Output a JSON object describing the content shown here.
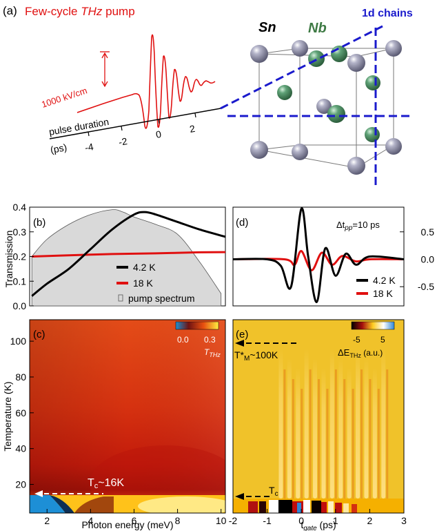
{
  "panel_a": {
    "label": "(a)",
    "title": "Few-cycle THz pump",
    "title_plain": "Few-cycle ",
    "title_italic": "THz",
    "title_end": " pump",
    "field_label": "1000 kV/cm",
    "axis_label": "pulse duration",
    "unit_label": "(ps)",
    "ticks": [
      "-4",
      "-2",
      "0",
      "2"
    ],
    "crystal": {
      "sn_label": "Sn",
      "nb_label": "Nb",
      "chains_label": "1d chains",
      "colors": {
        "sn": "#8e8ea8",
        "nb": "#4f9366",
        "chains": "#1a1acc"
      }
    }
  },
  "panel_b": {
    "label": "(b)",
    "ylabel": "Transmission",
    "yticks": [
      "0.0",
      "0.1",
      "0.2",
      "0.3",
      "0.4"
    ],
    "legend": [
      "4.2 K",
      "18 K",
      "pump spectrum"
    ]
  },
  "panel_c": {
    "label": "(c)",
    "ylabel": "Temperature (K)",
    "xlabel": "Photon energy (meV)",
    "xticks": [
      "2",
      "4",
      "6",
      "8",
      "10"
    ],
    "yticks": [
      "20",
      "40",
      "60",
      "80",
      "100"
    ],
    "colorbar_ticks": [
      "0.0",
      "0.3"
    ],
    "colorbar_label": "T",
    "colorbar_sub": "THz",
    "tc_annotation": "T",
    "tc_sub": "c",
    "tc_value": "~16K"
  },
  "panel_d": {
    "label": "(d)",
    "annotation_prefix": "Δt",
    "annotation_sub": "pp",
    "annotation_value": "=10 ps",
    "yticks": [
      "0.5",
      "0.0",
      "-0.5"
    ],
    "legend": [
      "4.2 K",
      "18 K"
    ]
  },
  "panel_e": {
    "label": "(e)",
    "xlabel_main": "t",
    "xlabel_sub": "gate",
    "xlabel_unit": " (ps)",
    "xticks": [
      "-2",
      "-1",
      "0",
      "1",
      "2",
      "3"
    ],
    "colorbar_ticks": [
      "-5",
      "5"
    ],
    "colorbar_label": "ΔE",
    "colorbar_sub": "THz",
    "colorbar_unit": " (a.u.)",
    "tm_annotation": "T*",
    "tm_sub": "M",
    "tm_value": "~100K",
    "tc_annotation": "T",
    "tc_sub": "c"
  },
  "colors": {
    "black_curve": "#000000",
    "red_curve": "#e01010",
    "pump_fill": "#d9d9d9"
  },
  "chart_data": [
    {
      "type": "line",
      "panel": "(b)",
      "xlabel": "",
      "ylabel": "Transmission",
      "xlim": [
        1.2,
        10.2
      ],
      "ylim": [
        0,
        0.4
      ],
      "series": [
        {
          "name": "4.2 K",
          "x": [
            1.3,
            2.0,
            3.0,
            4.0,
            5.0,
            6.0,
            6.5,
            7.0,
            8.0,
            9.0,
            10.2
          ],
          "values": [
            0.04,
            0.09,
            0.15,
            0.23,
            0.31,
            0.37,
            0.38,
            0.37,
            0.34,
            0.31,
            0.28
          ]
        },
        {
          "name": "18 K",
          "x": [
            1.3,
            3.0,
            5.0,
            7.0,
            9.0,
            10.2
          ],
          "values": [
            0.2,
            0.205,
            0.21,
            0.213,
            0.217,
            0.218
          ]
        },
        {
          "name": "pump spectrum",
          "x": [
            1.3,
            2.0,
            3.0,
            4.0,
            5.0,
            5.5,
            6.0,
            7.0,
            8.0,
            9.0,
            10.0
          ],
          "values": [
            0.2,
            0.27,
            0.33,
            0.37,
            0.39,
            0.38,
            0.36,
            0.33,
            0.29,
            0.18,
            0.05
          ]
        }
      ]
    },
    {
      "type": "line",
      "panel": "(d)",
      "xlim": [
        -2,
        3
      ],
      "ylim": [
        -0.85,
        0.95
      ],
      "series": [
        {
          "name": "4.2 K",
          "x": [
            -2.0,
            -1.0,
            -0.6,
            -0.3,
            0.0,
            0.2,
            0.45,
            0.7,
            1.0,
            1.3,
            1.6,
            2.0,
            3.0
          ],
          "values": [
            0.0,
            0.0,
            -0.12,
            -0.5,
            0.92,
            0.05,
            -0.78,
            0.2,
            -0.3,
            0.1,
            -0.1,
            0.05,
            0.0
          ]
        },
        {
          "name": "18 K",
          "x": [
            -2.0,
            -0.5,
            -0.2,
            0.0,
            0.3,
            0.6,
            0.9,
            1.2,
            1.6,
            2.0,
            3.0
          ],
          "values": [
            0.0,
            0.0,
            -0.1,
            0.15,
            -0.2,
            0.12,
            -0.1,
            0.06,
            -0.04,
            0.0,
            0.0
          ]
        }
      ]
    },
    {
      "type": "heatmap",
      "panel": "(c)",
      "xlabel": "Photon energy (meV)",
      "ylabel": "Temperature (K)",
      "xlim": [
        1.2,
        10.2
      ],
      "ylim": [
        4,
        112
      ],
      "colorbar_range": [
        0.0,
        0.35
      ]
    },
    {
      "type": "heatmap",
      "panel": "(e)",
      "xlim": [
        -2,
        3
      ],
      "ylim": [
        4,
        112
      ],
      "colorbar_range": [
        -7,
        7
      ]
    }
  ]
}
